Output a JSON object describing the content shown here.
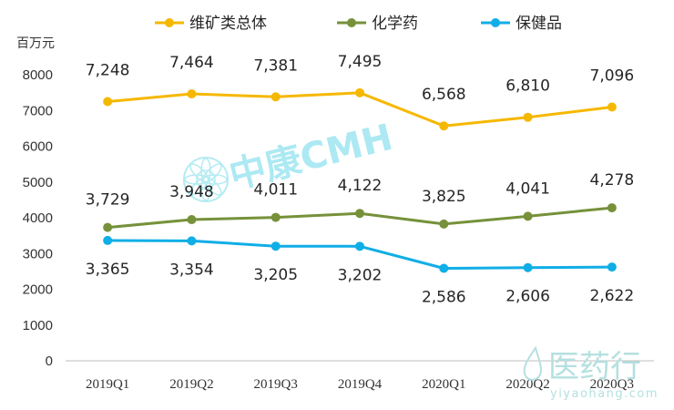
{
  "chart_data": {
    "type": "line",
    "categories": [
      "2019Q1",
      "2019Q2",
      "2019Q3",
      "2019Q4",
      "2020Q1",
      "2020Q2",
      "2020Q3"
    ],
    "series": [
      {
        "name": "维矿类总体",
        "color": "#F5B800",
        "values": [
          7248,
          7464,
          7381,
          7495,
          6568,
          6810,
          7096
        ],
        "labels": [
          "7,248",
          "7,464",
          "7,381",
          "7,495",
          "6,568",
          "6,810",
          "7,096"
        ]
      },
      {
        "name": "化学药",
        "color": "#76913A",
        "values": [
          3729,
          3948,
          4011,
          4122,
          3825,
          4041,
          4278
        ],
        "labels": [
          "3,729",
          "3,948",
          "4,011",
          "4,122",
          "3,825",
          "4,041",
          "4,278"
        ]
      },
      {
        "name": "保健品",
        "color": "#10AEE6",
        "values": [
          3365,
          3354,
          3205,
          3202,
          2586,
          2606,
          2622
        ],
        "labels": [
          "3,365",
          "3,354",
          "3,205",
          "3,202",
          "2,586",
          "2,606",
          "2,622"
        ]
      }
    ],
    "ylabel": "百万元",
    "ylim": [
      0,
      8000
    ],
    "yticks": [
      0,
      1000,
      2000,
      3000,
      4000,
      5000,
      6000,
      7000,
      8000
    ],
    "grid": false,
    "legend": "top"
  },
  "watermarks": {
    "cmh": {
      "icon": "flower-icon",
      "text": "中康CMH",
      "color": "#9EE6F2"
    },
    "yiyaohang": {
      "icon": "droplet-leaf-icon",
      "text": "医药行",
      "subtext": "yiyaohang.com",
      "color": "#B5E0E0"
    }
  }
}
